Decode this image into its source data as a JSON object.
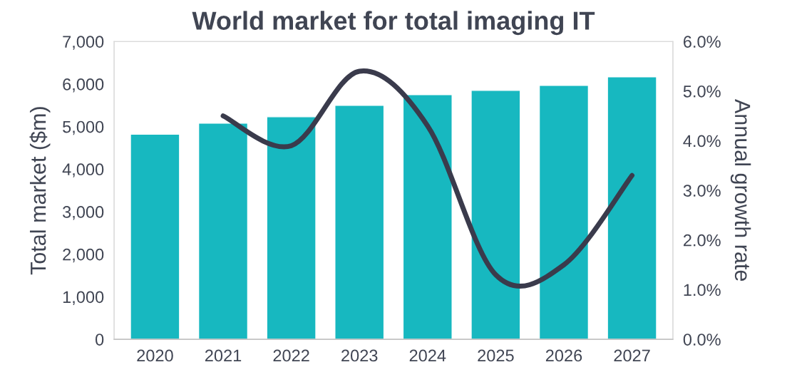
{
  "chart_data": {
    "type": "bar",
    "title": "World market for total imaging IT",
    "ylabel": "Total market ($m)",
    "y2label": "Annual growth rate",
    "categories": [
      "2020",
      "2021",
      "2022",
      "2023",
      "2024",
      "2025",
      "2026",
      "2027"
    ],
    "series": [
      {
        "color": "#17b8c0",
        "values": [
          4820,
          5080,
          5230,
          5500,
          5750,
          5850,
          5970,
          6170
        ]
      },
      {
        "type": "line",
        "axis": "y2",
        "color": "#3a3b4c",
        "line_style": "solid",
        "values": [
          null,
          4.5,
          3.9,
          5.4,
          4.3,
          1.3,
          1.5,
          3.3
        ]
      }
    ],
    "ylim": [
      0,
      7000
    ],
    "yticks": [
      0,
      {
        "value": 1000,
        "label": "1,000"
      },
      {
        "value": 2000,
        "label": "2,000"
      },
      {
        "value": 3000,
        "label": "3,000"
      },
      {
        "value": 4000,
        "label": "4,000"
      },
      {
        "value": 5000,
        "label": "5,000"
      },
      {
        "value": 6000,
        "label": "6,000"
      },
      {
        "value": 7000,
        "label": "7,000"
      }
    ],
    "y2lim": [
      0,
      6
    ],
    "y2ticks": [
      {
        "value": 0,
        "label": "0.0%"
      },
      {
        "value": 1,
        "label": "1.0%"
      },
      {
        "value": 2,
        "label": "2.0%"
      },
      {
        "value": 3,
        "label": "3.0%"
      },
      {
        "value": 4,
        "label": "4.0%"
      },
      {
        "value": 5,
        "label": "5.0%"
      },
      {
        "value": 6,
        "label": "6.0%"
      }
    ],
    "grid": false,
    "legend": false
  }
}
